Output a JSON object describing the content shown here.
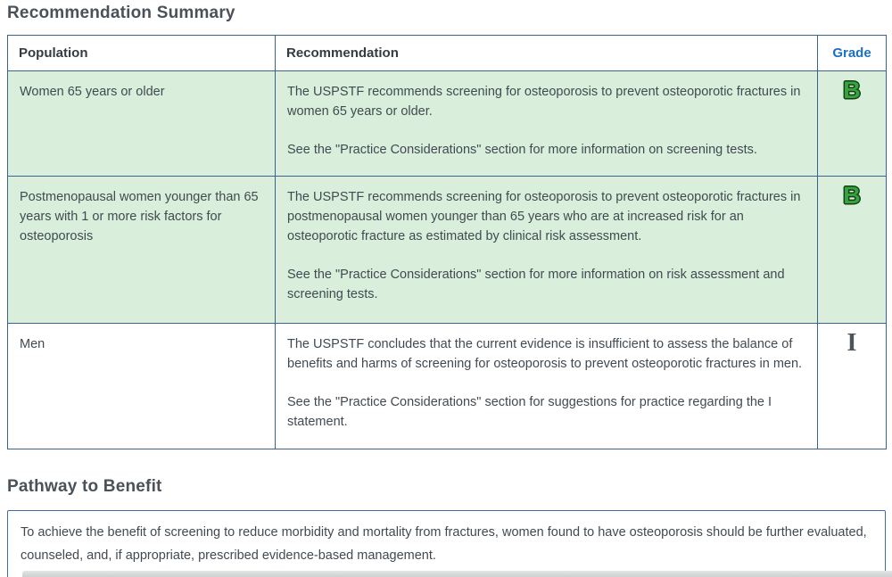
{
  "page": {
    "title": "Recommendation Summary",
    "pathway_title": "Pathway to Benefit",
    "pathway_text": "To achieve the benefit of screening to reduce morbidity and mortality from fractures, women found to have osteoporosis should be further evaluated, counseled, and, if appropriate, prescribed evidence-based management."
  },
  "table": {
    "headers": [
      "Population",
      "Recommendation",
      "Grade"
    ],
    "rows": [
      {
        "population": "Women 65 years or older",
        "paragraphs": [
          "The USPSTF recommends screening for osteoporosis to prevent osteoporotic fractures in women 65 years or older.",
          "See the \"Practice Considerations\" section for more information on screening tests."
        ],
        "grade": "B",
        "highlighted": true
      },
      {
        "population": "Postmenopausal women younger than 65 years with 1 or more risk factors for osteoporosis",
        "paragraphs": [
          "The USPSTF recommends screening for osteoporosis to prevent osteoporotic fractures in postmenopausal women younger than 65 years who are at increased risk for an osteoporotic fracture as estimated by clinical risk assessment.",
          "See the \"Practice Considerations\" section for more information on risk assessment and screening tests."
        ],
        "grade": "B",
        "highlighted": true
      },
      {
        "population": "Men",
        "paragraphs": [
          "The USPSTF concludes that the current evidence is insufficient to assess the balance of benefits and harms of screening for osteoporosis to prevent osteoporotic fractures in men.",
          "See the \"Practice Considerations\" section for suggestions for practice regarding the I statement."
        ],
        "grade": "I",
        "highlighted": false
      }
    ]
  },
  "colors": {
    "table_border": "#3a648f",
    "highlight_row_background": "#d9efdb",
    "grade_header_link": "#1b6fc0",
    "grade_b_fill": "#35a43f",
    "grade_b_outline": "#133f13",
    "grade_i": "#4d545b",
    "body_text": "#414a52",
    "heading_text": "#4a5158",
    "pathway_box_border": "#3f6da0"
  }
}
